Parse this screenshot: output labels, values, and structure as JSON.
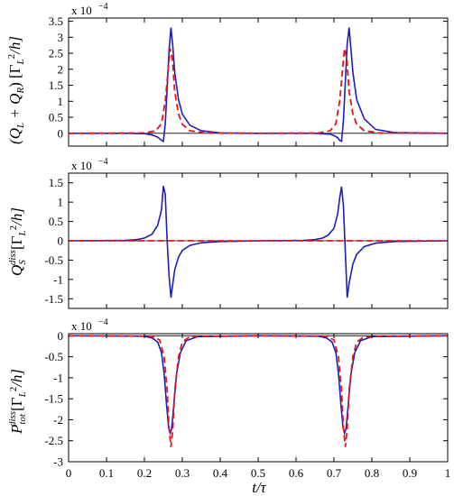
{
  "chart_data": [
    {
      "type": "line",
      "exponent_label": "x 10",
      "exponent_power": "−4",
      "ylabel": "(Q̇_L + Q̇_R) [Γ_L²/h]",
      "ylabel_parts": {
        "lead": "(",
        "q1": "Q",
        "s1": "L",
        "plus": " + ",
        "q2": "Q",
        "s2": "R",
        "close": ") [Γ",
        "s3": "L",
        "sup": "2",
        "tail": "/h]"
      },
      "xlim": [
        0,
        1
      ],
      "ylim": [
        -0.4,
        3.6
      ],
      "yticks": [
        0,
        0.5,
        1,
        1.5,
        2,
        2.5,
        3,
        3.5
      ],
      "ytick_labels": [
        "0",
        "0.5",
        "1",
        "1.5",
        "2",
        "2.5",
        "3",
        "3.5"
      ],
      "series": [
        {
          "style": "solid",
          "color": "#1f1fb4",
          "x": [
            0,
            0.15,
            0.2,
            0.22,
            0.235,
            0.245,
            0.25,
            0.255,
            0.26,
            0.265,
            0.27,
            0.275,
            0.28,
            0.29,
            0.3,
            0.32,
            0.35,
            0.4,
            0.5,
            0.65,
            0.69,
            0.7,
            0.71,
            0.715,
            0.72,
            0.725,
            0.73,
            0.735,
            0.74,
            0.75,
            0.76,
            0.78,
            0.81,
            0.86,
            1
          ],
          "y": [
            0,
            0,
            -0.01,
            -0.05,
            -0.12,
            -0.22,
            -0.25,
            0.3,
            1.4,
            2.6,
            3.3,
            2.7,
            1.9,
            1.05,
            0.6,
            0.25,
            0.08,
            0.01,
            0,
            0,
            -0.03,
            -0.07,
            -0.14,
            -0.22,
            -0.25,
            0.4,
            1.6,
            2.8,
            3.3,
            1.9,
            1.05,
            0.45,
            0.12,
            0.02,
            0
          ]
        },
        {
          "style": "dashed",
          "color": "#e3141c",
          "x": [
            0,
            0.2,
            0.23,
            0.245,
            0.255,
            0.262,
            0.268,
            0.274,
            0.28,
            0.29,
            0.3,
            0.32,
            0.36,
            0.5,
            0.66,
            0.69,
            0.705,
            0.715,
            0.722,
            0.728,
            0.734,
            0.74,
            0.75,
            0.76,
            0.78,
            0.82,
            1
          ],
          "y": [
            0,
            0.01,
            0.08,
            0.3,
            1.0,
            1.9,
            2.65,
            2.3,
            1.3,
            0.6,
            0.28,
            0.08,
            0.01,
            0,
            0.01,
            0.08,
            0.3,
            1.0,
            1.9,
            2.65,
            2.3,
            1.3,
            0.6,
            0.28,
            0.08,
            0.01,
            0
          ]
        }
      ]
    },
    {
      "type": "line",
      "exponent_label": "x 10",
      "exponent_power": "−4",
      "ylabel": "Q̇_S^diss [Γ_L²/h]",
      "ylabel_parts": {
        "q": "Q",
        "sub": "S",
        "sup_diss": "diss",
        "bracket": "[Γ",
        "s": "L",
        "sup": "2",
        "tail": "/h]"
      },
      "xlim": [
        0,
        1
      ],
      "ylim": [
        -1.75,
        1.75
      ],
      "yticks": [
        -1.5,
        -1,
        -0.5,
        0,
        0.5,
        1,
        1.5
      ],
      "ytick_labels": [
        "-1.5",
        "-1",
        "-0.5",
        "0",
        "0.5",
        "1",
        "1.5"
      ],
      "series": [
        {
          "style": "solid",
          "color": "#1f1fb4",
          "x": [
            0,
            0.15,
            0.18,
            0.2,
            0.22,
            0.235,
            0.245,
            0.25,
            0.255,
            0.26,
            0.265,
            0.27,
            0.275,
            0.28,
            0.29,
            0.3,
            0.32,
            0.35,
            0.4,
            0.5,
            0.62,
            0.65,
            0.67,
            0.685,
            0.7,
            0.71,
            0.715,
            0.72,
            0.725,
            0.73,
            0.735,
            0.74,
            0.75,
            0.76,
            0.78,
            0.81,
            0.86,
            1
          ],
          "y": [
            0,
            0.01,
            0.03,
            0.07,
            0.17,
            0.4,
            0.8,
            1.42,
            1.2,
            0,
            -0.9,
            -1.47,
            -1.1,
            -0.75,
            -0.42,
            -0.25,
            -0.12,
            -0.05,
            -0.02,
            0,
            0.01,
            0.03,
            0.07,
            0.15,
            0.32,
            0.7,
            1.1,
            1.4,
            0.9,
            -0.3,
            -1.47,
            -1.1,
            -0.6,
            -0.35,
            -0.15,
            -0.06,
            -0.02,
            0
          ]
        },
        {
          "style": "dashed",
          "color": "#e3141c",
          "x": [
            0,
            1
          ],
          "y": [
            0,
            0
          ]
        }
      ]
    },
    {
      "type": "line",
      "exponent_label": "x 10",
      "exponent_power": "−4",
      "ylabel": "P_tot^diss [Γ_L²/h]",
      "ylabel_parts": {
        "p": "P",
        "sub": "tot",
        "sup_diss": "diss",
        "bracket": "[Γ",
        "s": "L",
        "sup": "2",
        "tail": "/h]"
      },
      "xlabel": "t/τ",
      "xlim": [
        0,
        1
      ],
      "ylim": [
        -3,
        0.05
      ],
      "yticks": [
        -3,
        -2.5,
        -2,
        -1.5,
        -1,
        -0.5,
        0
      ],
      "ytick_labels": [
        "-3",
        "-2.5",
        "-2",
        "-1.5",
        "-1",
        "-0.5",
        "0"
      ],
      "xticks": [
        0,
        0.1,
        0.2,
        0.3,
        0.4,
        0.5,
        0.6,
        0.7,
        0.8,
        0.9,
        1
      ],
      "xtick_labels": [
        "0",
        "0.1",
        "0.2",
        "0.3",
        "0.4",
        "0.5",
        "0.6",
        "0.7",
        "0.8",
        "0.9",
        "1"
      ],
      "series": [
        {
          "style": "solid",
          "color": "#1f1fb4",
          "x": [
            0,
            0.2,
            0.22,
            0.235,
            0.245,
            0.252,
            0.258,
            0.264,
            0.268,
            0.272,
            0.278,
            0.285,
            0.295,
            0.31,
            0.34,
            0.5,
            0.66,
            0.68,
            0.695,
            0.705,
            0.712,
            0.718,
            0.724,
            0.728,
            0.732,
            0.738,
            0.745,
            0.755,
            0.77,
            0.8,
            1
          ],
          "y": [
            0,
            -0.01,
            -0.05,
            -0.15,
            -0.4,
            -0.9,
            -1.6,
            -2.2,
            -2.32,
            -2.2,
            -1.6,
            -0.9,
            -0.4,
            -0.12,
            -0.02,
            0,
            -0.01,
            -0.05,
            -0.15,
            -0.4,
            -0.9,
            -1.6,
            -2.2,
            -2.32,
            -2.2,
            -1.6,
            -0.9,
            -0.4,
            -0.12,
            -0.02,
            0
          ]
        },
        {
          "style": "dashed",
          "color": "#e3141c",
          "x": [
            0,
            0.22,
            0.24,
            0.252,
            0.26,
            0.265,
            0.27,
            0.275,
            0.28,
            0.29,
            0.3,
            0.32,
            0.5,
            0.68,
            0.7,
            0.712,
            0.72,
            0.725,
            0.73,
            0.735,
            0.74,
            0.75,
            0.76,
            0.78,
            1
          ],
          "y": [
            0,
            -0.01,
            -0.1,
            -0.5,
            -1.3,
            -2.2,
            -2.65,
            -2.2,
            -1.3,
            -0.5,
            -0.15,
            -0.02,
            0,
            -0.01,
            -0.1,
            -0.5,
            -1.3,
            -2.2,
            -2.65,
            -2.2,
            -1.3,
            -0.5,
            -0.15,
            -0.02,
            0
          ]
        }
      ]
    }
  ]
}
